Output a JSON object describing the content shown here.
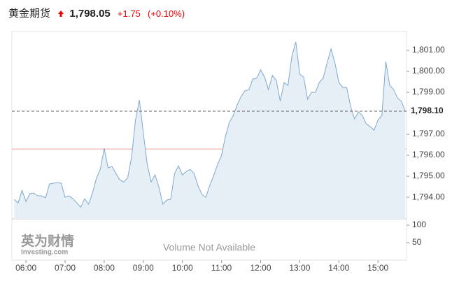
{
  "chart_data": {
    "type": "area",
    "title": "黄金期货",
    "price": "1,798.05",
    "change": "+1.75",
    "change_percent": "(+0.10%)",
    "last_price": {
      "value": 1798.1,
      "label": "1,798.10"
    },
    "previous_close": 1796.3,
    "series": [
      {
        "color": "#7fa9cf",
        "fill": "#e6eef6",
        "x": [
          5.7,
          5.8,
          5.9,
          6.0,
          6.1,
          6.2,
          6.3,
          6.4,
          6.5,
          6.6,
          6.7,
          6.8,
          6.9,
          7.0,
          7.1,
          7.2,
          7.3,
          7.4,
          7.5,
          7.6,
          7.7,
          7.8,
          7.9,
          8.0,
          8.1,
          8.2,
          8.3,
          8.4,
          8.5,
          8.6,
          8.7,
          8.8,
          8.9,
          9.0,
          9.1,
          9.2,
          9.3,
          9.4,
          9.5,
          9.6,
          9.7,
          9.8,
          9.9,
          10.0,
          10.1,
          10.2,
          10.3,
          10.4,
          10.5,
          10.6,
          10.7,
          10.8,
          10.9,
          11.0,
          11.1,
          11.2,
          11.3,
          11.4,
          11.5,
          11.6,
          11.7,
          11.8,
          11.9,
          12.0,
          12.1,
          12.2,
          12.3,
          12.4,
          12.5,
          12.6,
          12.7,
          12.8,
          12.9,
          13.0,
          13.1,
          13.2,
          13.3,
          13.4,
          13.5,
          13.6,
          13.7,
          13.8,
          13.9,
          14.0,
          14.1,
          14.2,
          14.3,
          14.4,
          14.5,
          14.6,
          14.7,
          14.8,
          14.9,
          15.0,
          15.1,
          15.2,
          15.3,
          15.4,
          15.5,
          15.6,
          15.7
        ],
        "values": [
          1793.9,
          1793.73,
          1794.33,
          1793.8,
          1794.17,
          1794.2,
          1794.07,
          1794.07,
          1793.97,
          1794.63,
          1794.67,
          1794.7,
          1794.67,
          1794.0,
          1794.07,
          1793.93,
          1793.73,
          1793.53,
          1793.93,
          1793.67,
          1794.2,
          1794.9,
          1795.33,
          1796.33,
          1795.4,
          1795.47,
          1795.13,
          1794.83,
          1794.73,
          1794.93,
          1795.9,
          1797.67,
          1798.63,
          1797.07,
          1795.57,
          1794.73,
          1795.07,
          1794.47,
          1793.67,
          1793.87,
          1793.9,
          1795.13,
          1795.5,
          1795.07,
          1795.23,
          1795.33,
          1795.13,
          1794.53,
          1794.13,
          1794.0,
          1794.57,
          1795.03,
          1795.57,
          1796.0,
          1796.9,
          1797.57,
          1797.9,
          1798.4,
          1798.8,
          1799.07,
          1799.13,
          1799.63,
          1799.67,
          1800.07,
          1799.73,
          1799.13,
          1799.8,
          1799.57,
          1798.57,
          1799.47,
          1799.33,
          1800.73,
          1801.4,
          1799.87,
          1799.73,
          1798.67,
          1799.0,
          1799.0,
          1799.47,
          1799.67,
          1800.4,
          1801.07,
          1800.4,
          1799.47,
          1799.23,
          1799.23,
          1798.33,
          1797.73,
          1798.07,
          1797.9,
          1797.5,
          1797.37,
          1797.2,
          1797.67,
          1797.9,
          1800.47,
          1799.33,
          1799.13,
          1798.73,
          1798.57,
          1798.1
        ]
      }
    ],
    "xlim": [
      5.64,
      15.73
    ],
    "xticks": [
      {
        "value": 6,
        "label": "06:00"
      },
      {
        "value": 7,
        "label": "07:00"
      },
      {
        "value": 8,
        "label": "08:00"
      },
      {
        "value": 9,
        "label": "09:00"
      },
      {
        "value": 10,
        "label": "10:00"
      },
      {
        "value": 11,
        "label": "11:00"
      },
      {
        "value": 12,
        "label": "12:00"
      },
      {
        "value": 13,
        "label": "13:00"
      },
      {
        "value": 14,
        "label": "14:00"
      },
      {
        "value": 15,
        "label": "15:00"
      }
    ],
    "ylim": [
      1792.97,
      1801.9
    ],
    "yticks": [
      {
        "value": 1801,
        "label": "1,801.00"
      },
      {
        "value": 1800,
        "label": "1,800.00"
      },
      {
        "value": 1799,
        "label": "1,799.00"
      },
      {
        "value": 1797,
        "label": "1,797.00"
      },
      {
        "value": 1796,
        "label": "1,796.00"
      },
      {
        "value": 1795,
        "label": "1,795.00"
      },
      {
        "value": 1794,
        "label": "1,794.00"
      }
    ],
    "volume_ylim": [
      0,
      118
    ],
    "volume_yticks": [
      100,
      50
    ],
    "volume_note": "Volume Not Available",
    "watermark": [
      "英为财情",
      "Investing.com"
    ]
  }
}
